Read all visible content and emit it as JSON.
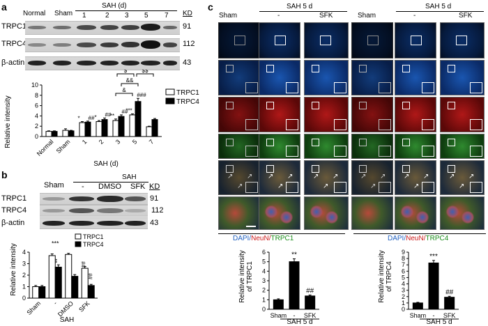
{
  "panels": {
    "a": "a",
    "b": "b",
    "c": "c"
  },
  "panel_a": {
    "blot_columns": [
      "Normal",
      "Sham",
      "1",
      "2",
      "3",
      "5",
      "7"
    ],
    "group_header": "SAH (d)",
    "kd_header": "KD",
    "rows": [
      {
        "name": "TRPC1",
        "kd": "91"
      },
      {
        "name": "TRPC4",
        "kd": "112"
      },
      {
        "name": "β-actin",
        "kd": "43"
      }
    ]
  },
  "panel_b": {
    "sham_label": "Sham",
    "group_header": "SAH",
    "blot_columns": [
      "-",
      "DMSO",
      "SFK"
    ],
    "kd_header": "KD",
    "rows": [
      {
        "name": "TRPC1",
        "kd": "91"
      },
      {
        "name": "TRPC4",
        "kd": "112"
      },
      {
        "name": "β-actin",
        "kd": "43"
      }
    ]
  },
  "panel_c": {
    "header_left": {
      "sham": "Sham",
      "group": "SAH 5 d",
      "minus": "-",
      "sfk": "SFK"
    },
    "header_right": {
      "sham": "Sham",
      "group": "SAH 5 d",
      "minus": "-",
      "sfk": "SFK"
    },
    "caption_left": {
      "dapi": "DAPI/",
      "neun": "NeuN",
      "sep": "/",
      "trpc": "TRPC1"
    },
    "caption_right": {
      "dapi": "DAPI/",
      "neun": "NeuN",
      "sep": "/",
      "trpc": "TRPC4"
    },
    "colors": {
      "dapi": "#1f5fbf",
      "neun": "#cc1a1a",
      "trpc": "#1a8c1a"
    }
  },
  "chart_data": [
    {
      "id": "a-chart",
      "type": "bar",
      "categories": [
        "Normal",
        "Sham",
        "1",
        "2",
        "3",
        "5",
        "7"
      ],
      "xlabel": "SAH (d)",
      "ylabel": "Relative intensity",
      "ylim": [
        0,
        10
      ],
      "yticks": [
        0,
        2,
        4,
        6,
        8,
        10
      ],
      "series": [
        {
          "name": "TRPC1",
          "color": "#ffffff",
          "values": [
            1.0,
            1.2,
            2.7,
            2.9,
            3.1,
            4.2,
            1.9
          ],
          "errors": [
            0.1,
            0.3,
            0.2,
            0.2,
            0.3,
            0.2,
            0.1
          ]
        },
        {
          "name": "TRPC4",
          "color": "#000000",
          "values": [
            1.0,
            1.1,
            2.8,
            3.3,
            3.9,
            6.8,
            3.3
          ],
          "errors": [
            0.1,
            0.1,
            0.2,
            0.3,
            0.3,
            0.6,
            0.2
          ]
        }
      ],
      "annotations": {
        "bar_marks": [
          {
            "category": "1",
            "series": "TRPC1",
            "text": "*"
          },
          {
            "category": "1",
            "series": "TRPC4",
            "text": "##"
          },
          {
            "category": "2",
            "series": "TRPC1",
            "text": "*"
          },
          {
            "category": "2",
            "series": "TRPC4",
            "text": "##"
          },
          {
            "category": "3",
            "series": "TRPC1",
            "text": "**"
          },
          {
            "category": "3",
            "series": "TRPC4",
            "text": "##"
          },
          {
            "category": "5",
            "series": "TRPC1",
            "text": "***"
          },
          {
            "category": "5",
            "series": "TRPC4",
            "text": "###"
          }
        ],
        "brackets": [
          {
            "text": "&",
            "level": 1
          },
          {
            "text": "&&",
            "level": 2
          },
          {
            "text": "$",
            "level": 3
          },
          {
            "text": "$$",
            "level": 3
          }
        ]
      },
      "legend": "top-right"
    },
    {
      "id": "b-chart",
      "type": "bar",
      "categories": [
        "Sham",
        "-",
        "DMSO",
        "SFK"
      ],
      "xlabel": "SAH",
      "ylabel": "Relative intensity",
      "ylim": [
        0,
        4
      ],
      "yticks": [
        0,
        1,
        2,
        3,
        4
      ],
      "series": [
        {
          "name": "TRPC1",
          "color": "#ffffff",
          "values": [
            1.0,
            3.7,
            3.8,
            2.6
          ],
          "errors": [
            0.1,
            0.15,
            0.1,
            0.15
          ]
        },
        {
          "name": "TRPC4",
          "color": "#000000",
          "values": [
            1.0,
            2.7,
            1.9,
            1.1
          ],
          "errors": [
            0.1,
            0.2,
            0.15,
            0.1
          ]
        }
      ],
      "annotations": {
        "top_marks": [
          {
            "category": "-",
            "text": "***"
          },
          {
            "category": "-",
            "text": "**"
          },
          {
            "category": "SFK",
            "text": "##"
          },
          {
            "category": "SFK",
            "text": "##"
          }
        ]
      },
      "legend": "top-right"
    },
    {
      "id": "c1-chart",
      "type": "bar",
      "categories": [
        "Sham",
        "-",
        "SFK"
      ],
      "xlabel": "SAH 5 d",
      "ylabel": "Relative intensity of TRPC1",
      "ylim": [
        0,
        6
      ],
      "yticks": [
        0,
        1,
        2,
        3,
        4,
        5,
        6
      ],
      "series": [
        {
          "values": [
            1.0,
            5.0,
            1.4
          ],
          "errors": [
            0.1,
            0.3,
            0.1
          ],
          "color": "#000000"
        }
      ],
      "annotations": {
        "top_marks": [
          {
            "category": "-",
            "text": "**"
          },
          {
            "category": "SFK",
            "text": "##"
          }
        ]
      }
    },
    {
      "id": "c2-chart",
      "type": "bar",
      "categories": [
        "Sham",
        "-",
        "SFK"
      ],
      "xlabel": "SAH 5 d",
      "ylabel": "Relative intensity of TRPC4",
      "ylim": [
        0,
        9
      ],
      "yticks": [
        0,
        1,
        2,
        3,
        4,
        5,
        6,
        7,
        8,
        9
      ],
      "series": [
        {
          "values": [
            1.0,
            7.3,
            1.9
          ],
          "errors": [
            0.1,
            0.4,
            0.15
          ],
          "color": "#000000"
        }
      ],
      "annotations": {
        "top_marks": [
          {
            "category": "-",
            "text": "***"
          },
          {
            "category": "SFK",
            "text": "##"
          }
        ]
      }
    }
  ]
}
